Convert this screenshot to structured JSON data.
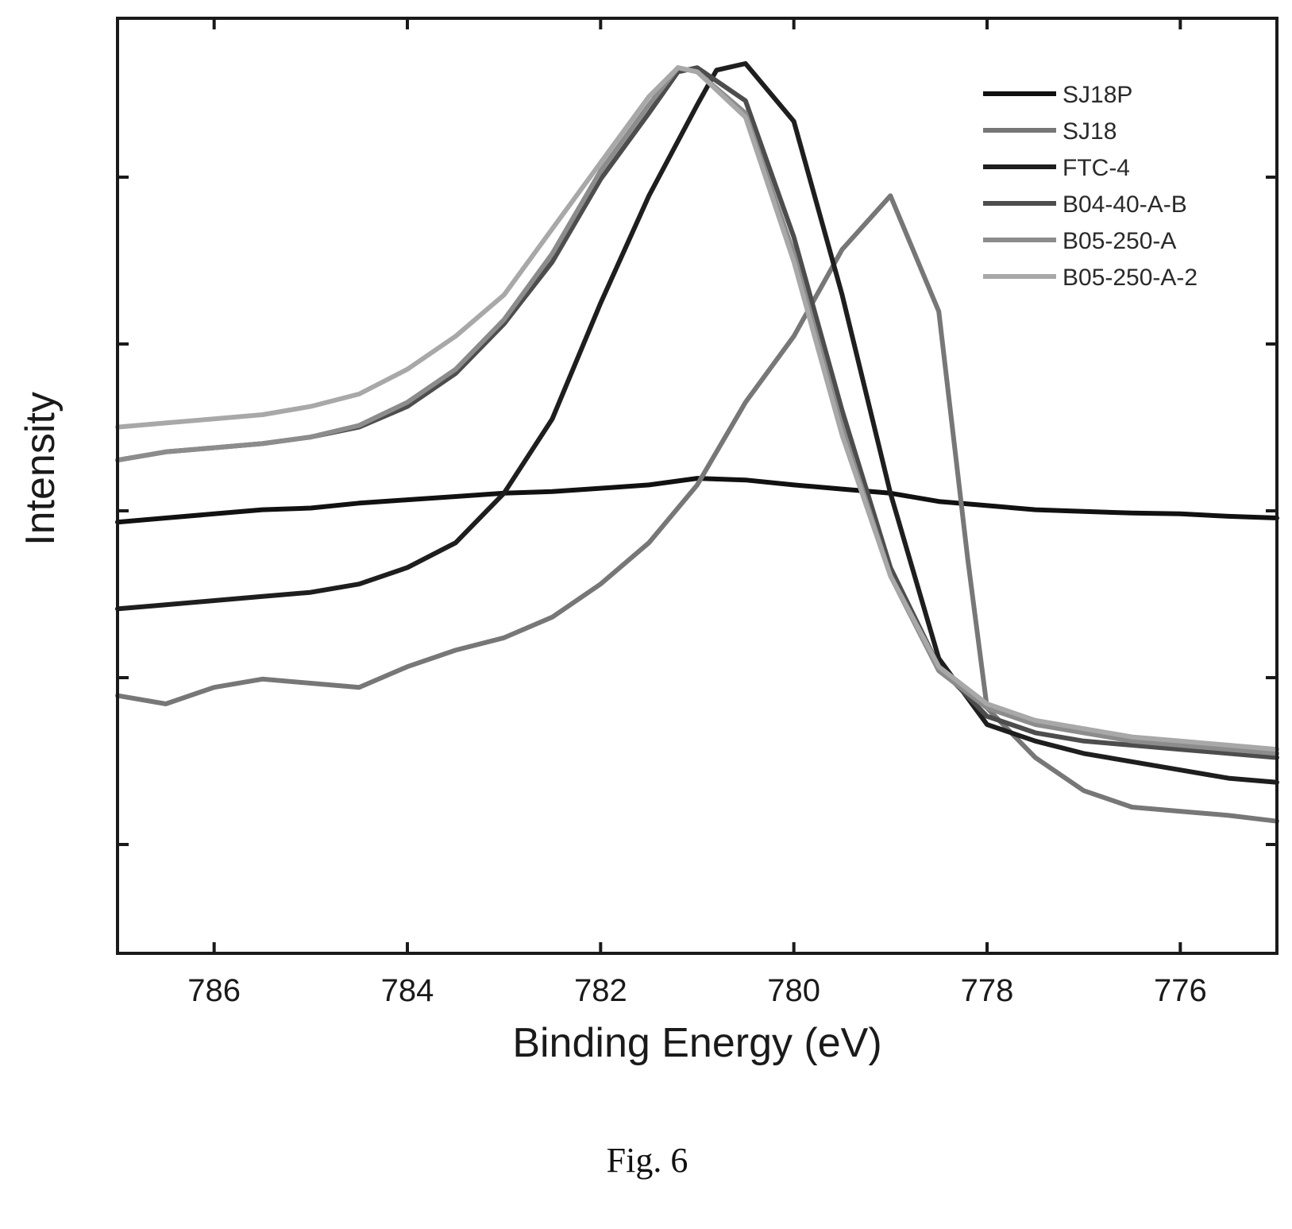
{
  "chart_data": {
    "type": "line",
    "xlabel": "Binding Energy (eV)",
    "ylabel": "Intensity",
    "x_reversed": true,
    "xlim": [
      787,
      775
    ],
    "ylim": [
      0,
      1
    ],
    "x_ticks": [
      786,
      784,
      782,
      780,
      778,
      776
    ],
    "y_tick_count": 5,
    "show_y_tick_labels": false,
    "grid": false,
    "legend_position": "top-right",
    "series": [
      {
        "name": "SJ18P",
        "color": "#111111",
        "x": [
          787,
          786.5,
          786,
          785.5,
          785,
          784.5,
          784,
          783.5,
          783,
          782.5,
          782,
          781.5,
          781,
          780.5,
          780,
          779.5,
          779,
          778.5,
          778,
          777.5,
          777,
          776.5,
          776,
          775.5,
          775
        ],
        "y": [
          0.445,
          0.45,
          0.455,
          0.46,
          0.462,
          0.468,
          0.472,
          0.476,
          0.48,
          0.482,
          0.486,
          0.49,
          0.498,
          0.496,
          0.49,
          0.485,
          0.48,
          0.47,
          0.465,
          0.46,
          0.458,
          0.456,
          0.455,
          0.452,
          0.45
        ]
      },
      {
        "name": "SJ18",
        "color": "#777777",
        "x": [
          787,
          786.5,
          786,
          785.5,
          785,
          784.5,
          784,
          783.5,
          783,
          782.5,
          782,
          781.5,
          781,
          780.5,
          780,
          779.5,
          779,
          778.5,
          778.2,
          778,
          777.5,
          777,
          776.5,
          776,
          775.5,
          775
        ],
        "y": [
          0.235,
          0.225,
          0.245,
          0.255,
          0.25,
          0.245,
          0.27,
          0.29,
          0.305,
          0.33,
          0.37,
          0.42,
          0.49,
          0.59,
          0.67,
          0.775,
          0.84,
          0.7,
          0.4,
          0.22,
          0.16,
          0.12,
          0.1,
          0.095,
          0.09,
          0.083
        ]
      },
      {
        "name": "FTC-4",
        "color": "#1e1e1e",
        "x": [
          787,
          786.5,
          786,
          785.5,
          785,
          784.5,
          784,
          783.5,
          783,
          782.5,
          782,
          781.5,
          781,
          780.8,
          780.5,
          780,
          779.5,
          779,
          778.5,
          778,
          777.5,
          777,
          776.5,
          776,
          775.5,
          775
        ],
        "y": [
          0.34,
          0.345,
          0.35,
          0.355,
          0.36,
          0.37,
          0.39,
          0.42,
          0.48,
          0.57,
          0.71,
          0.84,
          0.95,
          0.992,
          1.0,
          0.93,
          0.72,
          0.48,
          0.28,
          0.2,
          0.18,
          0.165,
          0.155,
          0.145,
          0.135,
          0.13
        ]
      },
      {
        "name": "B04-40-A-B",
        "color": "#4d4d4d",
        "x": [
          787,
          786.5,
          786,
          785.5,
          785,
          784.5,
          784,
          783.5,
          783,
          782.5,
          782,
          781.5,
          781.2,
          781,
          780.5,
          780,
          779.5,
          779,
          778.5,
          778,
          777.5,
          777,
          776.5,
          776,
          775.5,
          775
        ],
        "y": [
          0.52,
          0.53,
          0.535,
          0.54,
          0.548,
          0.56,
          0.585,
          0.625,
          0.685,
          0.76,
          0.86,
          0.94,
          0.99,
          0.995,
          0.955,
          0.79,
          0.58,
          0.39,
          0.27,
          0.21,
          0.19,
          0.18,
          0.175,
          0.17,
          0.165,
          0.16
        ]
      },
      {
        "name": "B05-250-A",
        "color": "#8c8c8c",
        "x": [
          787,
          786.5,
          786,
          785.5,
          785,
          784.5,
          784,
          783.5,
          783,
          782.5,
          782,
          781.5,
          781.2,
          781,
          780.5,
          780,
          779.5,
          779,
          778.5,
          778,
          777.5,
          777,
          776.5,
          776,
          775.5,
          775
        ],
        "y": [
          0.52,
          0.53,
          0.535,
          0.54,
          0.548,
          0.562,
          0.59,
          0.63,
          0.69,
          0.77,
          0.87,
          0.95,
          0.995,
          0.99,
          0.94,
          0.77,
          0.56,
          0.38,
          0.265,
          0.22,
          0.2,
          0.19,
          0.18,
          0.175,
          0.17,
          0.165
        ]
      },
      {
        "name": "B05-250-A-2",
        "color": "#a8a8a8",
        "x": [
          787,
          786.5,
          786,
          785.5,
          785,
          784.5,
          784,
          783.5,
          783,
          782.5,
          782,
          781.5,
          781.2,
          781,
          780.5,
          780,
          779.5,
          779,
          778.5,
          778,
          777.5,
          777,
          776.5,
          776,
          775.5,
          775
        ],
        "y": [
          0.56,
          0.565,
          0.57,
          0.575,
          0.585,
          0.6,
          0.63,
          0.67,
          0.72,
          0.8,
          0.88,
          0.96,
          0.995,
          0.99,
          0.935,
          0.76,
          0.55,
          0.38,
          0.27,
          0.225,
          0.205,
          0.195,
          0.185,
          0.18,
          0.175,
          0.17
        ]
      }
    ]
  },
  "caption": "Fig. 6"
}
